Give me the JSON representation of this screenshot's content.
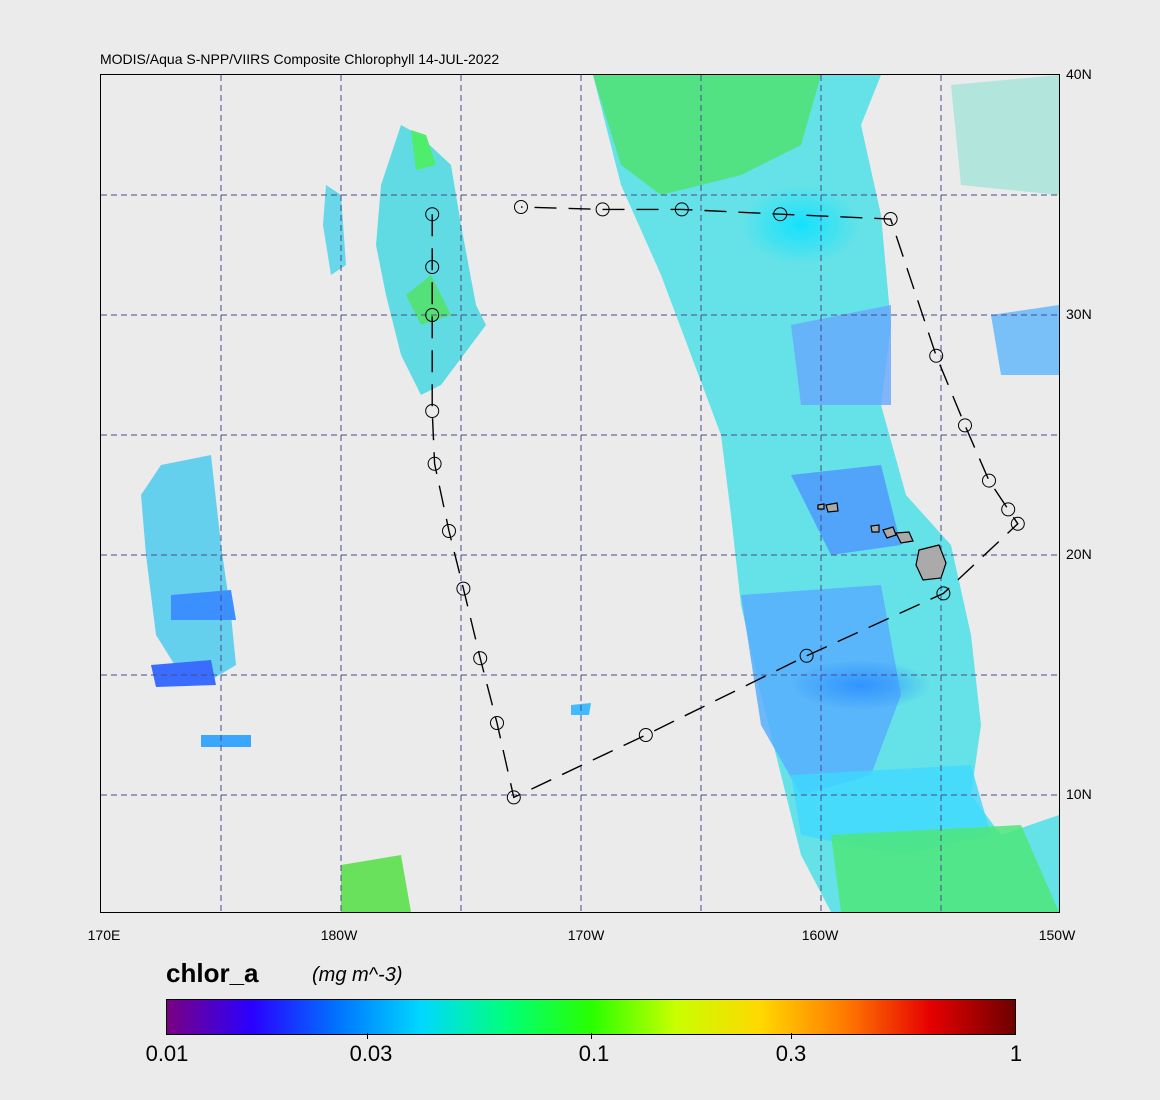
{
  "map": {
    "title": "MODIS/Aqua S-NPP/VIIRS Composite Chlorophyll 14-JUL-2022",
    "lon_labels": [
      "170E",
      "180W",
      "170W",
      "160W",
      "150W"
    ],
    "lat_labels": [
      "40N",
      "30N",
      "20N",
      "10N"
    ],
    "track_points": [
      {
        "lon": -176.2,
        "lat": 34.2
      },
      {
        "lon": -176.2,
        "lat": 32.0
      },
      {
        "lon": -176.2,
        "lat": 30.0
      },
      {
        "lon": -176.2,
        "lat": 26.0
      },
      {
        "lon": -176.1,
        "lat": 23.8
      },
      {
        "lon": -175.5,
        "lat": 21.0
      },
      {
        "lon": -174.9,
        "lat": 18.6
      },
      {
        "lon": -174.2,
        "lat": 15.7
      },
      {
        "lon": -173.5,
        "lat": 13.0
      },
      {
        "lon": -172.8,
        "lat": 9.9
      },
      {
        "lon": -167.3,
        "lat": 12.5
      },
      {
        "lon": -160.6,
        "lat": 15.8
      },
      {
        "lon": -154.9,
        "lat": 18.4
      },
      {
        "lon": -151.8,
        "lat": 21.3
      },
      {
        "lon": -152.2,
        "lat": 21.9
      },
      {
        "lon": -153.0,
        "lat": 23.1
      },
      {
        "lon": -154.0,
        "lat": 25.4
      },
      {
        "lon": -155.2,
        "lat": 28.3
      },
      {
        "lon": -157.1,
        "lat": 34.0
      },
      {
        "lon": -161.7,
        "lat": 34.2
      },
      {
        "lon": -165.8,
        "lat": 34.4
      },
      {
        "lon": -169.1,
        "lat": 34.4
      },
      {
        "lon": -172.5,
        "lat": 34.5
      }
    ]
  },
  "colorbar": {
    "title": "chlor_a",
    "units": "(mg m^-3)",
    "ticks": [
      "0.01",
      "0.03",
      "0.1",
      "0.3",
      "1"
    ],
    "colors": [
      "#7a0082",
      "#2a00ff",
      "#0072ff",
      "#00d8ff",
      "#00ff7a",
      "#28ff00",
      "#c8ff00",
      "#ffd800",
      "#ff7a00",
      "#e60000",
      "#6e0000"
    ]
  }
}
